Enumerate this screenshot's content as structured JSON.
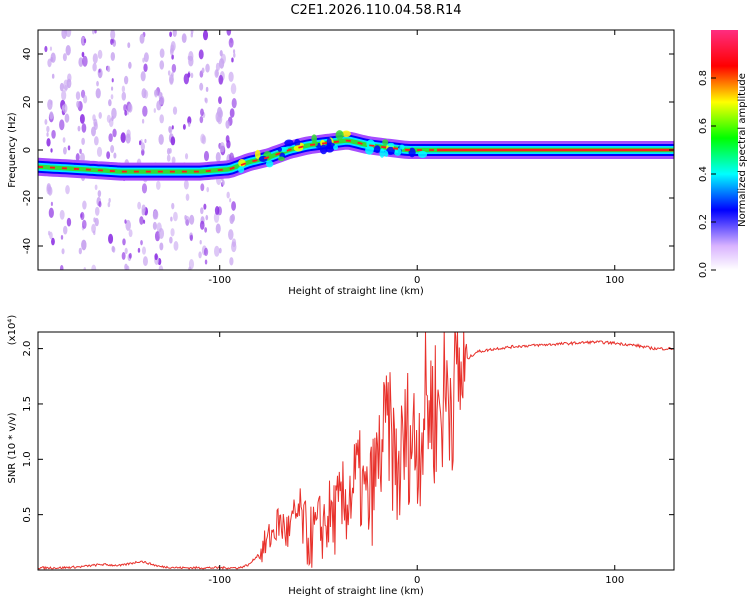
{
  "title": "C2E1.2026.110.04.58.R14",
  "chart_data": [
    {
      "type": "heatmap",
      "xlabel": "Height of straight line (km)",
      "ylabel": "Frequency (Hz)",
      "xlim": [
        -192,
        130
      ],
      "ylim": [
        -50,
        50
      ],
      "xticks": [
        -100,
        0,
        100
      ],
      "yticks": [
        -40,
        -20,
        0,
        20,
        40
      ],
      "ridge": [
        {
          "x": -192,
          "y": -7
        },
        {
          "x": -170,
          "y": -8
        },
        {
          "x": -150,
          "y": -9
        },
        {
          "x": -130,
          "y": -9
        },
        {
          "x": -110,
          "y": -9
        },
        {
          "x": -95,
          "y": -8
        },
        {
          "x": -85,
          "y": -5
        },
        {
          "x": -75,
          "y": -3
        },
        {
          "x": -65,
          "y": 0
        },
        {
          "x": -55,
          "y": 2
        },
        {
          "x": -45,
          "y": 3
        },
        {
          "x": -35,
          "y": 4
        },
        {
          "x": -25,
          "y": 2
        },
        {
          "x": -15,
          "y": 1
        },
        {
          "x": -5,
          "y": 0
        },
        {
          "x": 10,
          "y": 0
        },
        {
          "x": 130,
          "y": 0
        }
      ],
      "colorbar": {
        "label": "Normalized spectral amplitude",
        "range": [
          0,
          1
        ],
        "ticks": [
          0.0,
          0.2,
          0.4,
          0.6,
          0.8
        ],
        "tick_labels": [
          "0.0",
          "0.2",
          "0.4",
          "0.6",
          "0.8"
        ],
        "colors": [
          "#ffffff",
          "#a64cff",
          "#0000ff",
          "#00ffff",
          "#00ff00",
          "#ffff00",
          "#ff0000",
          "#ff00a0"
        ]
      }
    },
    {
      "type": "line",
      "xlabel": "Height of straight line (km)",
      "ylabel": "SNR (10 * v/v)",
      "scale_label": "(x10⁴)",
      "xlim": [
        -192,
        130
      ],
      "ylim": [
        0,
        2.15
      ],
      "xticks": [
        -100,
        0,
        100
      ],
      "yticks": [
        0.5,
        1.0,
        1.5,
        2.0
      ],
      "ytick_labels": [
        "0.5",
        "1.0",
        "1.5",
        "2.0"
      ],
      "color": "#e8312b",
      "series": [
        {
          "name": "SNR",
          "x": [
            -192,
            -180,
            -170,
            -160,
            -150,
            -140,
            -130,
            -120,
            -110,
            -100,
            -90,
            -85,
            -80,
            -75,
            -70,
            -65,
            -60,
            -55,
            -50,
            -45,
            -40,
            -35,
            -30,
            -25,
            -20,
            -15,
            -10,
            -5,
            0,
            5,
            10,
            15,
            20,
            25,
            30,
            40,
            50,
            60,
            70,
            80,
            90,
            100,
            110,
            120,
            130
          ],
          "y": [
            0.02,
            0.02,
            0.03,
            0.05,
            0.04,
            0.08,
            0.03,
            0.02,
            0.02,
            0.02,
            0.02,
            0.05,
            0.15,
            0.3,
            0.45,
            0.35,
            0.55,
            0.3,
            0.4,
            0.5,
            0.55,
            0.7,
            0.9,
            0.6,
            1.0,
            1.4,
            0.9,
            1.3,
            1.2,
            1.6,
            1.5,
            1.7,
            1.8,
            1.9,
            1.97,
            2.0,
            2.02,
            2.03,
            2.04,
            2.05,
            2.06,
            2.05,
            2.03,
            2.0,
            2.0
          ]
        }
      ]
    }
  ]
}
